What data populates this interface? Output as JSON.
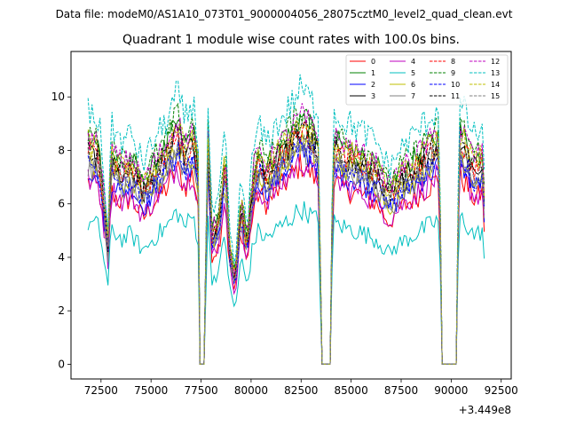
{
  "figure": {
    "suptitle": "Data file: modeM0/AS1A10_073T01_9000004056_28075cztM0_level2_quad_clean.evt"
  },
  "chart_data": {
    "type": "line",
    "title": "Quadrant 1 module wise count rates with 100.0s bins.",
    "xlabel": "",
    "ylabel": "",
    "x_offset_label": "+3.449e8",
    "xlim": [
      71000,
      93000
    ],
    "ylim": [
      -0.55,
      11.7
    ],
    "x_ticks": [
      72500,
      75000,
      77500,
      80000,
      82500,
      85000,
      87500,
      90000,
      92500
    ],
    "x_tick_labels": [
      "72500",
      "75000",
      "77500",
      "80000",
      "82500",
      "85000",
      "87500",
      "90000",
      "92500"
    ],
    "y_ticks": [
      0,
      2,
      4,
      6,
      8,
      10
    ],
    "y_tick_labels": [
      "0",
      "2",
      "4",
      "6",
      "8",
      "10"
    ],
    "x_start": 71850,
    "x_step": 100,
    "gaps": [
      [
        77450,
        77700
      ],
      [
        83500,
        83950
      ],
      [
        89550,
        90250
      ]
    ],
    "legend_location": "upper right",
    "legend_columns": 4,
    "series": [
      {
        "name": "0",
        "color": "#ff0000",
        "dash": "solid",
        "base_level": 6.8,
        "noise": 0.5
      },
      {
        "name": "1",
        "color": "#008000",
        "dash": "solid",
        "base_level": 8.4,
        "noise": 0.5
      },
      {
        "name": "2",
        "color": "#0000ff",
        "dash": "solid",
        "base_level": 7.3,
        "noise": 0.5
      },
      {
        "name": "3",
        "color": "#000000",
        "dash": "solid",
        "base_level": 7.9,
        "noise": 0.5
      },
      {
        "name": "4",
        "color": "#bf00bf",
        "dash": "solid",
        "base_level": 6.9,
        "noise": 0.5
      },
      {
        "name": "5",
        "color": "#00bfbf",
        "dash": "solid",
        "base_level": 5.3,
        "noise": 0.4
      },
      {
        "name": "6",
        "color": "#bfbf00",
        "dash": "solid",
        "base_level": 7.6,
        "noise": 0.5
      },
      {
        "name": "7",
        "color": "#808080",
        "dash": "solid",
        "base_level": 7.4,
        "noise": 0.5
      },
      {
        "name": "8",
        "color": "#ff0000",
        "dash": "dashed",
        "base_level": 8.0,
        "noise": 0.5
      },
      {
        "name": "9",
        "color": "#008000",
        "dash": "dashed",
        "base_level": 8.7,
        "noise": 0.5
      },
      {
        "name": "10",
        "color": "#0000ff",
        "dash": "dashed",
        "base_level": 7.5,
        "noise": 0.5
      },
      {
        "name": "11",
        "color": "#000000",
        "dash": "dashed",
        "base_level": 8.1,
        "noise": 0.5
      },
      {
        "name": "12",
        "color": "#bf00bf",
        "dash": "dashed",
        "base_level": 8.5,
        "noise": 0.5
      },
      {
        "name": "13",
        "color": "#00bfbf",
        "dash": "dashed",
        "base_level": 9.4,
        "noise": 0.6
      },
      {
        "name": "14",
        "color": "#bfbf00",
        "dash": "dashed",
        "base_level": 8.3,
        "noise": 0.5
      },
      {
        "name": "15",
        "color": "#808080",
        "dash": "dashed",
        "base_level": 7.7,
        "noise": 0.5
      }
    ],
    "envelope": [
      [
        71850,
        1.0
      ],
      [
        72400,
        0.97
      ],
      [
        72850,
        0.55
      ],
      [
        73000,
        0.95
      ],
      [
        73600,
        0.88
      ],
      [
        74000,
        0.92
      ],
      [
        74600,
        0.8
      ],
      [
        75200,
        0.9
      ],
      [
        75800,
        0.97
      ],
      [
        76300,
        1.08
      ],
      [
        76700,
        0.97
      ],
      [
        77100,
        1.05
      ],
      [
        77350,
        0.88
      ],
      [
        77450,
        0.0
      ],
      [
        77700,
        0.0
      ],
      [
        77800,
        1.1
      ],
      [
        78050,
        0.6
      ],
      [
        78400,
        0.65
      ],
      [
        78700,
        0.95
      ],
      [
        78900,
        0.55
      ],
      [
        79200,
        0.38
      ],
      [
        79500,
        0.75
      ],
      [
        79800,
        0.55
      ],
      [
        80100,
        0.85
      ],
      [
        80400,
        0.95
      ],
      [
        80700,
        0.88
      ],
      [
        81300,
        0.95
      ],
      [
        81900,
        1.02
      ],
      [
        82500,
        1.1
      ],
      [
        83000,
        1.05
      ],
      [
        83400,
        1.0
      ],
      [
        83500,
        0.0
      ],
      [
        83950,
        0.0
      ],
      [
        84100,
        1.0
      ],
      [
        84600,
        0.97
      ],
      [
        85500,
        0.93
      ],
      [
        86300,
        0.88
      ],
      [
        86900,
        0.78
      ],
      [
        87400,
        0.85
      ],
      [
        88000,
        0.9
      ],
      [
        88800,
        0.97
      ],
      [
        89400,
        1.02
      ],
      [
        89550,
        0.0
      ],
      [
        90250,
        0.0
      ],
      [
        90400,
        1.05
      ],
      [
        90800,
        0.98
      ],
      [
        91200,
        0.9
      ],
      [
        91550,
        0.95
      ],
      [
        91700,
        0.65
      ]
    ]
  }
}
